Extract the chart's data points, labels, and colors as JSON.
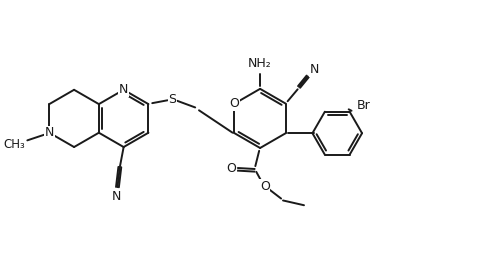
{
  "background_color": "#ffffff",
  "line_color": "#1a1a1a",
  "line_width": 1.4,
  "font_size": 9.0,
  "figsize": [
    5.01,
    2.54
  ],
  "dpi": 100,
  "xlim": [
    0,
    10.5
  ],
  "ylim": [
    0,
    5.2
  ]
}
